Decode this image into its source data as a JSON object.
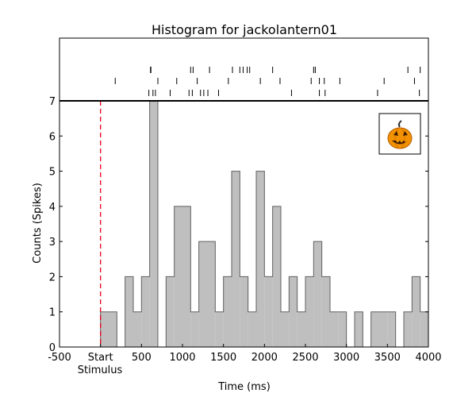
{
  "chart_data": {
    "type": "bar",
    "title": "Histogram for jackolantern01",
    "xlabel": "Time (ms)",
    "ylabel": "Counts (Spikes)",
    "xlim": [
      -500,
      4000
    ],
    "ylim": [
      0,
      7
    ],
    "xticks": [
      -500,
      0,
      500,
      1000,
      1500,
      2000,
      2500,
      3000,
      3500,
      4000
    ],
    "xtick_labels": [
      "-500",
      "Start",
      "500",
      "1000",
      "1500",
      "2000",
      "2500",
      "3000",
      "3500",
      "4000"
    ],
    "xtick_sublabel": "Stimulus",
    "yticks": [
      0,
      1,
      2,
      3,
      4,
      5,
      6,
      7
    ],
    "stimulus_start_ms": 0,
    "stimulus_line_color": "#e8001c",
    "bar_fill_color": "#bfbfbf",
    "bar_edge_color": "#606060",
    "bin_width_ms": 100,
    "bin_starts": [
      0,
      100,
      200,
      300,
      400,
      500,
      600,
      700,
      800,
      900,
      1000,
      1100,
      1200,
      1300,
      1400,
      1500,
      1600,
      1700,
      1800,
      1900,
      2000,
      2100,
      2200,
      2300,
      2400,
      2500,
      2600,
      2700,
      2800,
      2900,
      3000,
      3100,
      3200,
      3300,
      3400,
      3500,
      3600,
      3700,
      3800,
      3900
    ],
    "values": [
      1,
      1,
      0,
      2,
      1,
      2,
      7,
      0,
      2,
      4,
      4,
      1,
      3,
      3,
      1,
      2,
      5,
      2,
      1,
      5,
      2,
      4,
      1,
      2,
      1,
      2,
      3,
      2,
      1,
      1,
      0,
      1,
      0,
      1,
      1,
      1,
      0,
      1,
      2,
      1
    ],
    "raster_rows": [
      [
        610,
        615,
        1100,
        1130,
        1330,
        1610,
        1700,
        1740,
        1790,
        1820,
        2100,
        2600,
        2620,
        3750,
        3900
      ],
      [
        180,
        700,
        930,
        1180,
        1560,
        1950,
        2190,
        2570,
        2670,
        2730,
        2920,
        3460,
        3830
      ],
      [
        590,
        640,
        670,
        850,
        1080,
        1120,
        1220,
        1260,
        1310,
        1440,
        2330,
        2670,
        2740,
        3380,
        3890
      ]
    ],
    "inset_icon": "jack-o-lantern-icon",
    "grid": false
  }
}
